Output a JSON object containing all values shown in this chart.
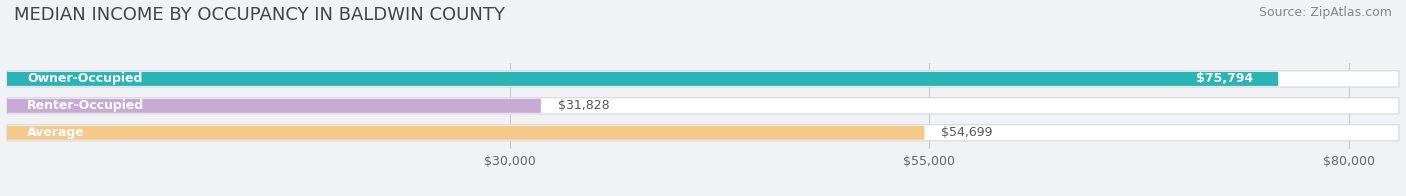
{
  "title": "MEDIAN INCOME BY OCCUPANCY IN BALDWIN COUNTY",
  "source": "Source: ZipAtlas.com",
  "categories": [
    "Owner-Occupied",
    "Renter-Occupied",
    "Average"
  ],
  "values": [
    75794,
    31828,
    54699
  ],
  "labels": [
    "$75,794",
    "$31,828",
    "$54,699"
  ],
  "bar_colors": [
    "#29b5b5",
    "#c9aad4",
    "#f5c98a"
  ],
  "xlim_max": 83000,
  "xticks": [
    30000,
    55000,
    80000
  ],
  "xtick_labels": [
    "$30,000",
    "$55,000",
    "$80,000"
  ],
  "title_fontsize": 13,
  "source_fontsize": 9,
  "label_fontsize": 9,
  "category_fontsize": 9,
  "bg_color": "#f0f2f5",
  "bar_bg_color": "#e8eaed",
  "bar_bg_edge_color": "#d5d8dc"
}
